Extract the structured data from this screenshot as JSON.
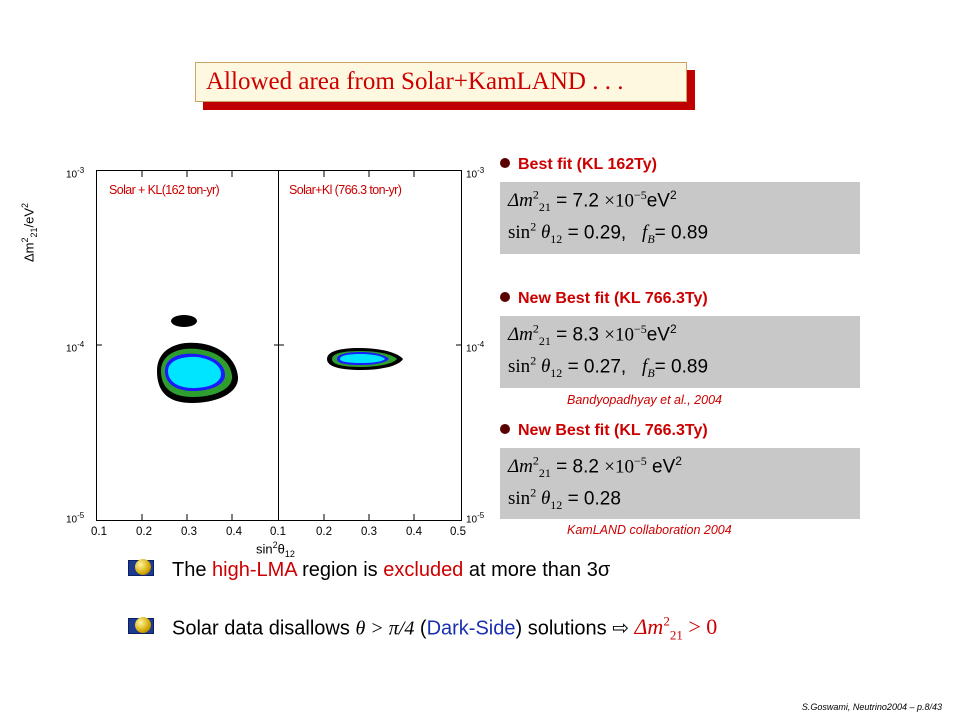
{
  "title": "Allowed area from Solar+KamLAND . . .",
  "plot": {
    "left_label": "Solar + KL(162 ton-yr)",
    "right_label": "Solar+Kl (766.3 ton-yr)",
    "y_ticks": {
      "top": "10",
      "top_exp": "-3",
      "mid": "10",
      "mid_exp": "-4",
      "bottom": "10",
      "bottom_exp": "-5"
    },
    "x_ticks_left": [
      "0.1",
      "0.2",
      "0.3",
      "0.4"
    ],
    "x_tick_shared": "0.1",
    "x_ticks_right": [
      "0.2",
      "0.3",
      "0.4",
      "0.5"
    ],
    "ylabel_main": "Δm",
    "ylabel_sup": "2",
    "ylabel_sub": "21",
    "ylabel_unit": "/eV",
    "ylabel_unit_sup": "2",
    "xlabel_main": "sin",
    "xlabel_sup": "2",
    "xlabel_theta": "θ",
    "xlabel_sub": "12",
    "colors": {
      "outer": "#000000",
      "mid": "#2e9e2e",
      "inner_border": "#1a1aff",
      "inner": "#00e5ff"
    }
  },
  "fits": [
    {
      "heading": "Best fit (KL 162Ty)",
      "line1_label": "Δm",
      "line1_sup": "2",
      "line1_sub": "21",
      "line1_eq": "= 7.2",
      "line1_times": "×10",
      "line1_exp": "−5",
      "line1_unit": "eV",
      "line1_unit_sup": "2",
      "line2_label": "sin",
      "line2_sup": "2",
      "line2_theta": "θ",
      "line2_sub": "12",
      "line2_eq": "= 0.29,",
      "line2_f": "f",
      "line2_fsub": "B",
      "line2_feq": "= 0.89",
      "citation": ""
    },
    {
      "heading": "New Best fit (KL 766.3Ty)",
      "line1_label": "Δm",
      "line1_sup": "2",
      "line1_sub": "21",
      "line1_eq": "= 8.3",
      "line1_times": "×10",
      "line1_exp": "−5",
      "line1_unit": "eV",
      "line1_unit_sup": "2",
      "line2_label": "sin",
      "line2_sup": "2",
      "line2_theta": "θ",
      "line2_sub": "12",
      "line2_eq": "= 0.27,",
      "line2_f": "f",
      "line2_fsub": "B",
      "line2_feq": "= 0.89",
      "citation": "Bandyopadhyay et al., 2004"
    },
    {
      "heading": "New Best fit (KL 766.3Ty)",
      "line1_label": "Δm",
      "line1_sup": "2",
      "line1_sub": "21",
      "line1_eq": "= 8.2",
      "line1_times": "×10",
      "line1_exp": "−5",
      "line1_unit": "eV",
      "line1_unit_sup": "2",
      "line2_label": "sin",
      "line2_sup": "2",
      "line2_theta": "θ",
      "line2_sub": "12",
      "line2_eq": "= 0.28",
      "citation": "KamLAND collaboration 2004"
    }
  ],
  "bullets": {
    "b1_a": "The ",
    "b1_b": "high-LMA",
    "b1_c": " region is ",
    "b1_d": "excluded",
    "b1_e": " at more than 3σ",
    "b2_a": "Solar data disallows ",
    "b2_b": "θ > π/4",
    "b2_c": " (",
    "b2_d": "Dark-Side",
    "b2_e": ") solutions ⇨ ",
    "b2_f": "Δm",
    "b2_f_sup": "2",
    "b2_f_sub": "21",
    "b2_g": " > 0"
  },
  "footer": "S.Goswami, Neutrino2004 – p.8/43"
}
